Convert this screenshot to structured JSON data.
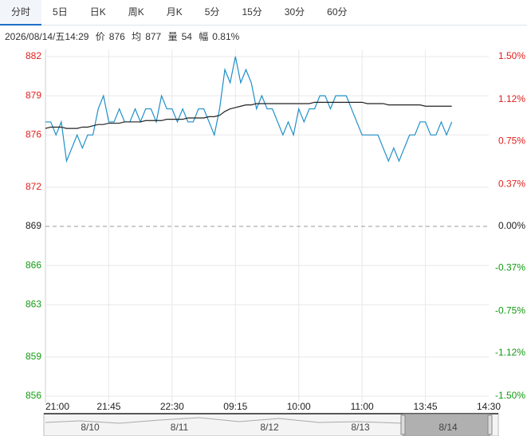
{
  "tabs": [
    "分时",
    "5日",
    "日K",
    "周K",
    "月K",
    "5分",
    "15分",
    "30分",
    "60分"
  ],
  "info": {
    "datetime": "2026/08/14/五14:29",
    "price_label": "价",
    "price": 876,
    "avg_label": "均",
    "avg": 877,
    "volume_label": "量",
    "volume": 54,
    "range_label": "幅",
    "range": "0.81%"
  },
  "chart_data": {
    "type": "line",
    "categories": [
      "21:00",
      null,
      null,
      null,
      null,
      null,
      null,
      null,
      null,
      null,
      null,
      null,
      "21:45",
      null,
      null,
      null,
      null,
      null,
      null,
      null,
      null,
      null,
      null,
      null,
      "22:30",
      null,
      null,
      null,
      null,
      null,
      null,
      null,
      null,
      null,
      null,
      null,
      "09:15",
      null,
      null,
      null,
      null,
      null,
      null,
      null,
      null,
      null,
      null,
      null,
      "10:00",
      null,
      null,
      null,
      null,
      null,
      null,
      null,
      null,
      null,
      null,
      null,
      "11:00",
      null,
      null,
      null,
      null,
      null,
      null,
      null,
      null,
      null,
      null,
      null,
      "13:45",
      null,
      null,
      null,
      null,
      null,
      null,
      null,
      null,
      null,
      null,
      null,
      "14:30"
    ],
    "series": [
      {
        "color": "#1e8fc8",
        "values": [
          877,
          877,
          876,
          877,
          874,
          875,
          876,
          875,
          876,
          876,
          878,
          879,
          877,
          877,
          878,
          877,
          877,
          878,
          877,
          878,
          878,
          877,
          879,
          878,
          878,
          877,
          878,
          877,
          877,
          878,
          878,
          877,
          876,
          878,
          881,
          880,
          882,
          880,
          881,
          880,
          878,
          879,
          878,
          878,
          877,
          876,
          877,
          876,
          878,
          877,
          878,
          878,
          879,
          879,
          878,
          879,
          879,
          879,
          878,
          877,
          876,
          876,
          876,
          876,
          875,
          874,
          875,
          874,
          875,
          876,
          876,
          877,
          877,
          876,
          876,
          877,
          876,
          877,
          null,
          null,
          null,
          null,
          null,
          null,
          null
        ]
      },
      {
        "color": "#222222",
        "values": [
          876.5,
          876.6,
          876.6,
          876.6,
          876.5,
          876.5,
          876.5,
          876.6,
          876.6,
          876.7,
          876.8,
          876.8,
          876.9,
          876.9,
          876.9,
          877.0,
          877.0,
          877.0,
          877.0,
          877.1,
          877.1,
          877.1,
          877.1,
          877.2,
          877.2,
          877.2,
          877.2,
          877.3,
          877.3,
          877.3,
          877.3,
          877.4,
          877.4,
          877.5,
          877.8,
          878.0,
          878.1,
          878.2,
          878.3,
          878.3,
          878.4,
          878.4,
          878.4,
          878.4,
          878.4,
          878.4,
          878.4,
          878.4,
          878.4,
          878.4,
          878.4,
          878.5,
          878.5,
          878.5,
          878.5,
          878.5,
          878.5,
          878.5,
          878.5,
          878.5,
          878.5,
          878.4,
          878.4,
          878.4,
          878.4,
          878.3,
          878.3,
          878.3,
          878.3,
          878.3,
          878.3,
          878.3,
          878.2,
          878.2,
          878.2,
          878.2,
          878.2,
          878.2,
          null,
          null,
          null,
          null,
          null,
          null,
          null
        ]
      }
    ],
    "ylim": [
      856,
      882
    ],
    "yticks": [
      856,
      859,
      863,
      866,
      869,
      872,
      876,
      879,
      882
    ],
    "y2lim": [
      -1.5,
      1.5
    ],
    "y2ticks": [
      {
        "value": -1.5,
        "label": "-1.50%"
      },
      {
        "value": -1.12,
        "label": "-1.12%"
      },
      {
        "value": -0.75,
        "label": "-0.75%"
      },
      {
        "value": -0.37,
        "label": "-0.37%"
      },
      {
        "value": 0,
        "label": "0.00%"
      },
      {
        "value": 0.37,
        "label": "0.37%"
      },
      {
        "value": 0.75,
        "label": "0.75%"
      },
      {
        "value": 1.12,
        "label": "1.12%"
      },
      {
        "value": 1.5,
        "label": "1.50%"
      }
    ],
    "reference": 869,
    "up_color": "#e0201e",
    "down_color": "#139a13",
    "grid": true
  },
  "navigator": {
    "dates": [
      "8/10",
      "8/11",
      "8/12",
      "8/13",
      "8/14"
    ]
  }
}
